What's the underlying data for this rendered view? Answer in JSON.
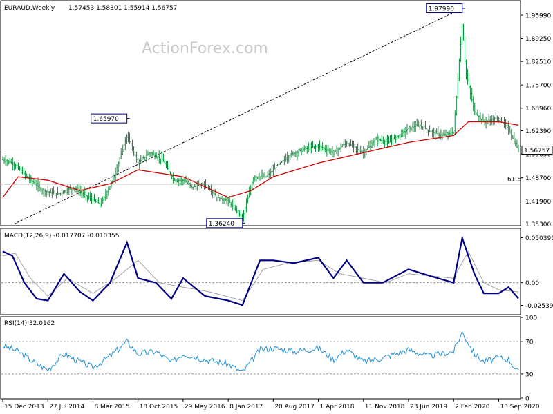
{
  "header": {
    "symbol": "EURAUD,Weekly",
    "ohlc": "1.57453 1.58301 1.55914 1.56757"
  },
  "watermark": "ActionForex.com",
  "chart_data": [
    {
      "type": "candlestick",
      "pane": "price",
      "y_ticks": [
        1.9599,
        1.8925,
        1.8251,
        1.757,
        1.6896,
        1.6239,
        1.5565,
        1.487,
        1.419,
        1.353
      ],
      "y_tick_labels": [
        "1.95990",
        "1.89250",
        "1.82510",
        "1.75700",
        "1.68960",
        "1.62390",
        "1.55650",
        "1.48700",
        "1.41900",
        "1.35300"
      ],
      "ylim": [
        1.35,
        2.0
      ],
      "current_price": 1.56757,
      "current_price_label": "1.56757",
      "fib_level": 1.469,
      "fib_label": "61.8",
      "annotations": [
        {
          "text": "1.97990",
          "date": "2020-03-16",
          "value": 1.9799
        },
        {
          "text": "1.65970",
          "date": "2015-08-24",
          "value": 1.6597
        },
        {
          "text": "1.36240",
          "date": "2017-03-20",
          "value": 1.3624
        }
      ],
      "trendline": {
        "start": [
          "2014-02-10",
          1.353
        ],
        "end": [
          "2020-03-16",
          1.9799
        ]
      },
      "close_series": [
        [
          "2013-12-15",
          1.54
        ],
        [
          "2014-02-01",
          1.53
        ],
        [
          "2014-04-15",
          1.49
        ],
        [
          "2014-07-01",
          1.45
        ],
        [
          "2014-09-15",
          1.44
        ],
        [
          "2014-12-01",
          1.46
        ],
        [
          "2015-02-15",
          1.43
        ],
        [
          "2015-04-15",
          1.41
        ],
        [
          "2015-06-15",
          1.48
        ],
        [
          "2015-08-24",
          1.61
        ],
        [
          "2015-10-18",
          1.53
        ],
        [
          "2015-12-15",
          1.56
        ],
        [
          "2016-02-15",
          1.54
        ],
        [
          "2016-04-15",
          1.48
        ],
        [
          "2016-06-01",
          1.48
        ],
        [
          "2016-07-15",
          1.46
        ],
        [
          "2016-09-15",
          1.47
        ],
        [
          "2016-11-15",
          1.43
        ],
        [
          "2017-01-08",
          1.42
        ],
        [
          "2017-03-20",
          1.37
        ],
        [
          "2017-05-15",
          1.49
        ],
        [
          "2017-07-15",
          1.49
        ],
        [
          "2017-08-20",
          1.51
        ],
        [
          "2017-11-01",
          1.55
        ],
        [
          "2018-01-15",
          1.57
        ],
        [
          "2018-04-01",
          1.58
        ],
        [
          "2018-06-15",
          1.56
        ],
        [
          "2018-08-20",
          1.59
        ],
        [
          "2018-11-11",
          1.56
        ],
        [
          "2019-01-15",
          1.6
        ],
        [
          "2019-03-15",
          1.59
        ],
        [
          "2019-06-23",
          1.63
        ],
        [
          "2019-08-15",
          1.64
        ],
        [
          "2019-10-15",
          1.62
        ],
        [
          "2019-12-15",
          1.61
        ],
        [
          "2020-02-02",
          1.62
        ],
        [
          "2020-03-16",
          1.94
        ],
        [
          "2020-04-01",
          1.8
        ],
        [
          "2020-05-15",
          1.68
        ],
        [
          "2020-07-01",
          1.65
        ],
        [
          "2020-09-13",
          1.66
        ],
        [
          "2020-11-01",
          1.63
        ],
        [
          "2020-12-01",
          1.59
        ],
        [
          "2020-12-20",
          1.567
        ]
      ],
      "ma_series": [
        [
          "2013-12-15",
          1.43
        ],
        [
          "2014-03-01",
          1.49
        ],
        [
          "2014-07-27",
          1.48
        ],
        [
          "2015-01-01",
          1.45
        ],
        [
          "2015-06-01",
          1.47
        ],
        [
          "2015-10-18",
          1.51
        ],
        [
          "2016-05-29",
          1.49
        ],
        [
          "2017-01-08",
          1.43
        ],
        [
          "2017-05-01",
          1.45
        ],
        [
          "2017-08-20",
          1.49
        ],
        [
          "2018-04-01",
          1.53
        ],
        [
          "2018-11-11",
          1.56
        ],
        [
          "2019-06-23",
          1.59
        ],
        [
          "2020-02-02",
          1.61
        ],
        [
          "2020-04-15",
          1.65
        ],
        [
          "2020-09-13",
          1.65
        ],
        [
          "2020-12-20",
          1.64
        ]
      ]
    },
    {
      "type": "line",
      "pane": "macd",
      "title": "MACD(12,26,9) -0.017707 -0.010355",
      "y_ticks": [
        0.050391,
        0.0,
        -0.025396
      ],
      "y_tick_labels": [
        "0.050391",
        "0.00",
        "-0.025396"
      ],
      "ylim": [
        -0.035,
        0.06
      ],
      "series": [
        {
          "name": "MACD",
          "points": [
            [
              "2013-12-15",
              0.035
            ],
            [
              "2014-02-01",
              0.03
            ],
            [
              "2014-04-01",
              0.0
            ],
            [
              "2014-06-01",
              -0.018
            ],
            [
              "2014-07-27",
              -0.02
            ],
            [
              "2014-10-15",
              0.01
            ],
            [
              "2015-01-01",
              -0.01
            ],
            [
              "2015-03-08",
              -0.02
            ],
            [
              "2015-06-01",
              0.0
            ],
            [
              "2015-08-24",
              0.045
            ],
            [
              "2015-10-18",
              0.005
            ],
            [
              "2016-01-15",
              0.0
            ],
            [
              "2016-04-01",
              -0.018
            ],
            [
              "2016-05-29",
              0.005
            ],
            [
              "2016-09-15",
              -0.015
            ],
            [
              "2017-01-08",
              -0.02
            ],
            [
              "2017-03-20",
              -0.025
            ],
            [
              "2017-06-15",
              0.025
            ],
            [
              "2017-08-20",
              0.025
            ],
            [
              "2017-12-01",
              0.022
            ],
            [
              "2018-04-01",
              0.028
            ],
            [
              "2018-06-15",
              0.005
            ],
            [
              "2018-08-20",
              0.025
            ],
            [
              "2018-11-11",
              0.0
            ],
            [
              "2019-02-15",
              0.0
            ],
            [
              "2019-06-23",
              0.015
            ],
            [
              "2019-10-01",
              0.008
            ],
            [
              "2020-02-02",
              0.0
            ],
            [
              "2020-03-16",
              0.05
            ],
            [
              "2020-05-15",
              0.01
            ],
            [
              "2020-07-01",
              -0.012
            ],
            [
              "2020-09-13",
              -0.012
            ],
            [
              "2020-11-01",
              -0.005
            ],
            [
              "2020-12-20",
              -0.0177
            ]
          ]
        },
        {
          "name": "Signal",
          "points": [
            [
              "2013-12-15",
              0.03
            ],
            [
              "2014-02-15",
              0.033
            ],
            [
              "2014-05-01",
              0.005
            ],
            [
              "2014-07-27",
              -0.015
            ],
            [
              "2014-11-01",
              0.005
            ],
            [
              "2015-03-08",
              -0.012
            ],
            [
              "2015-07-01",
              0.005
            ],
            [
              "2015-10-18",
              0.025
            ],
            [
              "2016-02-01",
              0.0
            ],
            [
              "2016-05-29",
              -0.005
            ],
            [
              "2016-10-01",
              -0.01
            ],
            [
              "2017-03-20",
              -0.02
            ],
            [
              "2017-07-01",
              0.015
            ],
            [
              "2017-11-01",
              0.022
            ],
            [
              "2018-04-01",
              0.025
            ],
            [
              "2018-07-15",
              0.01
            ],
            [
              "2018-11-11",
              0.005
            ],
            [
              "2019-03-01",
              0.0
            ],
            [
              "2019-06-23",
              0.01
            ],
            [
              "2020-02-02",
              0.005
            ],
            [
              "2020-04-15",
              0.035
            ],
            [
              "2020-07-01",
              0.0
            ],
            [
              "2020-09-13",
              -0.008
            ],
            [
              "2020-12-20",
              -0.0104
            ]
          ]
        }
      ]
    },
    {
      "type": "line",
      "pane": "rsi",
      "title": "RSI(14) 32.0162",
      "y_ticks": [
        100,
        70,
        30,
        0
      ],
      "y_tick_labels": [
        "100",
        "70",
        "30",
        "0"
      ],
      "ylim": [
        0,
        100
      ],
      "levels": [
        70,
        30
      ],
      "series": [
        {
          "name": "RSI",
          "points": [
            [
              "2013-12-15",
              65
            ],
            [
              "2014-03-01",
              58
            ],
            [
              "2014-05-15",
              45
            ],
            [
              "2014-07-27",
              35
            ],
            [
              "2014-10-15",
              55
            ],
            [
              "2015-01-01",
              45
            ],
            [
              "2015-03-08",
              38
            ],
            [
              "2015-06-01",
              52
            ],
            [
              "2015-08-24",
              70
            ],
            [
              "2015-10-18",
              55
            ],
            [
              "2016-01-15",
              58
            ],
            [
              "2016-04-01",
              44
            ],
            [
              "2016-05-29",
              55
            ],
            [
              "2016-09-15",
              48
            ],
            [
              "2017-01-08",
              42
            ],
            [
              "2017-03-20",
              32
            ],
            [
              "2017-06-15",
              60
            ],
            [
              "2017-08-20",
              62
            ],
            [
              "2017-12-01",
              58
            ],
            [
              "2018-04-01",
              62
            ],
            [
              "2018-06-15",
              48
            ],
            [
              "2018-08-20",
              60
            ],
            [
              "2018-11-11",
              45
            ],
            [
              "2019-02-15",
              50
            ],
            [
              "2019-06-23",
              60
            ],
            [
              "2019-10-01",
              52
            ],
            [
              "2020-02-02",
              58
            ],
            [
              "2020-03-16",
              82
            ],
            [
              "2020-05-15",
              55
            ],
            [
              "2020-07-01",
              45
            ],
            [
              "2020-09-13",
              50
            ],
            [
              "2020-11-01",
              48
            ],
            [
              "2020-12-20",
              32
            ]
          ]
        }
      ]
    }
  ],
  "x_axis": {
    "ticks": [
      {
        "label": "15 Dec 2013",
        "date": "2013-12-15"
      },
      {
        "label": "27 Jul 2014",
        "date": "2014-07-27"
      },
      {
        "label": "8 Mar 2015",
        "date": "2015-03-08"
      },
      {
        "label": "18 Oct 2015",
        "date": "2015-10-18"
      },
      {
        "label": "29 May 2016",
        "date": "2016-05-29"
      },
      {
        "label": "8 Jan 2017",
        "date": "2017-01-08"
      },
      {
        "label": "20 Aug 2017",
        "date": "2017-08-20"
      },
      {
        "label": "1 Apr 2018",
        "date": "2018-04-01"
      },
      {
        "label": "11 Nov 2018",
        "date": "2018-11-11"
      },
      {
        "label": "23 Jun 2019",
        "date": "2019-06-23"
      },
      {
        "label": "2 Feb 2020",
        "date": "2020-02-02"
      },
      {
        "label": "13 Sep 2020",
        "date": "2020-09-13"
      }
    ],
    "range": [
      "2013-12-08",
      "2020-12-27"
    ]
  },
  "colors": {
    "candle": "#0c8a3a",
    "ma": "#d00000",
    "macd": "#000080",
    "signal": "#a0a0a0",
    "rsi": "#1e90d6",
    "annotation_border": "#000080"
  }
}
